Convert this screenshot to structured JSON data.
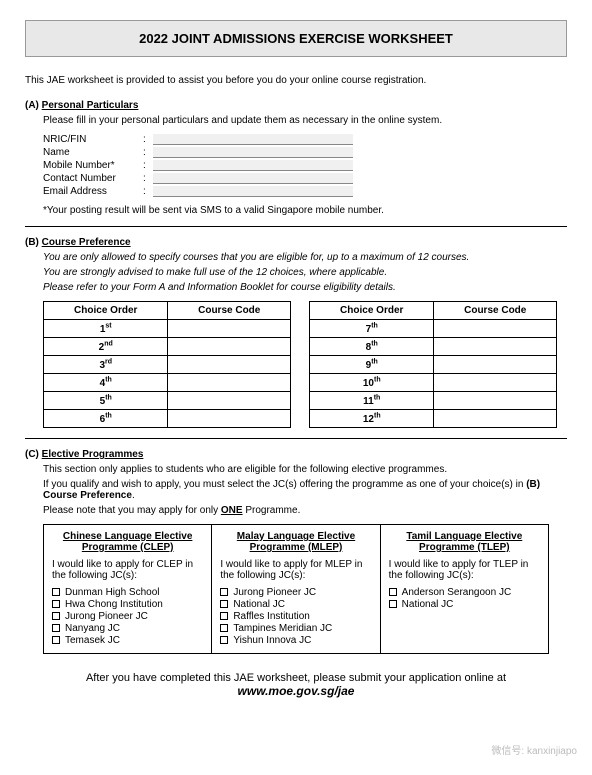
{
  "title": "2022 JOINT ADMISSIONS EXERCISE WORKSHEET",
  "intro": "This JAE worksheet is provided to assist you before you do your online course registration.",
  "sectionA": {
    "label": "(A)",
    "title": "Personal Particulars",
    "instruction": "Please fill in your personal particulars and update them as necessary in the online system.",
    "fields": {
      "nric": "NRIC/FIN",
      "name": "Name",
      "mobile": "Mobile Number*",
      "contact": "Contact Number",
      "email": "Email Address"
    },
    "note": "*Your posting result will be sent via SMS to a valid Singapore mobile number."
  },
  "sectionB": {
    "label": "(B)",
    "title": "Course Preference",
    "line1": "You are only allowed to specify courses that you are eligible for, up to a maximum of 12 courses.",
    "line2": "You are strongly advised to make full use of the 12 choices, where applicable.",
    "line3": "Please refer to your Form A and Information Booklet for course eligibility details.",
    "headers": {
      "order": "Choice Order",
      "code": "Course Code"
    },
    "left": [
      {
        "n": "1",
        "s": "st"
      },
      {
        "n": "2",
        "s": "nd"
      },
      {
        "n": "3",
        "s": "rd"
      },
      {
        "n": "4",
        "s": "th"
      },
      {
        "n": "5",
        "s": "th"
      },
      {
        "n": "6",
        "s": "th"
      }
    ],
    "right": [
      {
        "n": "7",
        "s": "th"
      },
      {
        "n": "8",
        "s": "th"
      },
      {
        "n": "9",
        "s": "th"
      },
      {
        "n": "10",
        "s": "th"
      },
      {
        "n": "11",
        "s": "th"
      },
      {
        "n": "12",
        "s": "th"
      }
    ]
  },
  "sectionC": {
    "label": "(C)",
    "title": "Elective Programmes",
    "line1": "This section only applies to students who are eligible for the following elective programmes.",
    "line2a": "If you qualify and wish to apply, you must select the JC(s) offering the programme as one of your choice(s) in ",
    "line2b": "(B) Course Preference",
    "line3a": "Please note that you may apply for only ",
    "line3b": "ONE",
    "line3c": " Programme.",
    "cols": [
      {
        "title1": "Chinese Language Elective",
        "title2": "Programme (CLEP)",
        "sub": "I would like to apply for CLEP in the following JC(s):",
        "items": [
          "Dunman High School",
          "Hwa Chong Institution",
          "Jurong Pioneer JC",
          "Nanyang JC",
          "Temasek JC"
        ]
      },
      {
        "title1": "Malay Language Elective",
        "title2": "Programme (MLEP)",
        "sub": "I would like to apply for MLEP in the following JC(s):",
        "items": [
          "Jurong Pioneer JC",
          "National JC",
          "Raffles Institution",
          "Tampines Meridian JC",
          "Yishun Innova JC"
        ]
      },
      {
        "title1": "Tamil Language Elective",
        "title2": "Programme (TLEP)",
        "sub": "I would like to apply for TLEP in the following JC(s):",
        "items": [
          "Anderson Serangoon JC",
          "National JC"
        ]
      }
    ]
  },
  "footer": {
    "line": "After you have completed this JAE worksheet, please submit your application online at",
    "url": "www.moe.gov.sg/jae"
  },
  "watermark": "微信号: kanxinjiapo"
}
